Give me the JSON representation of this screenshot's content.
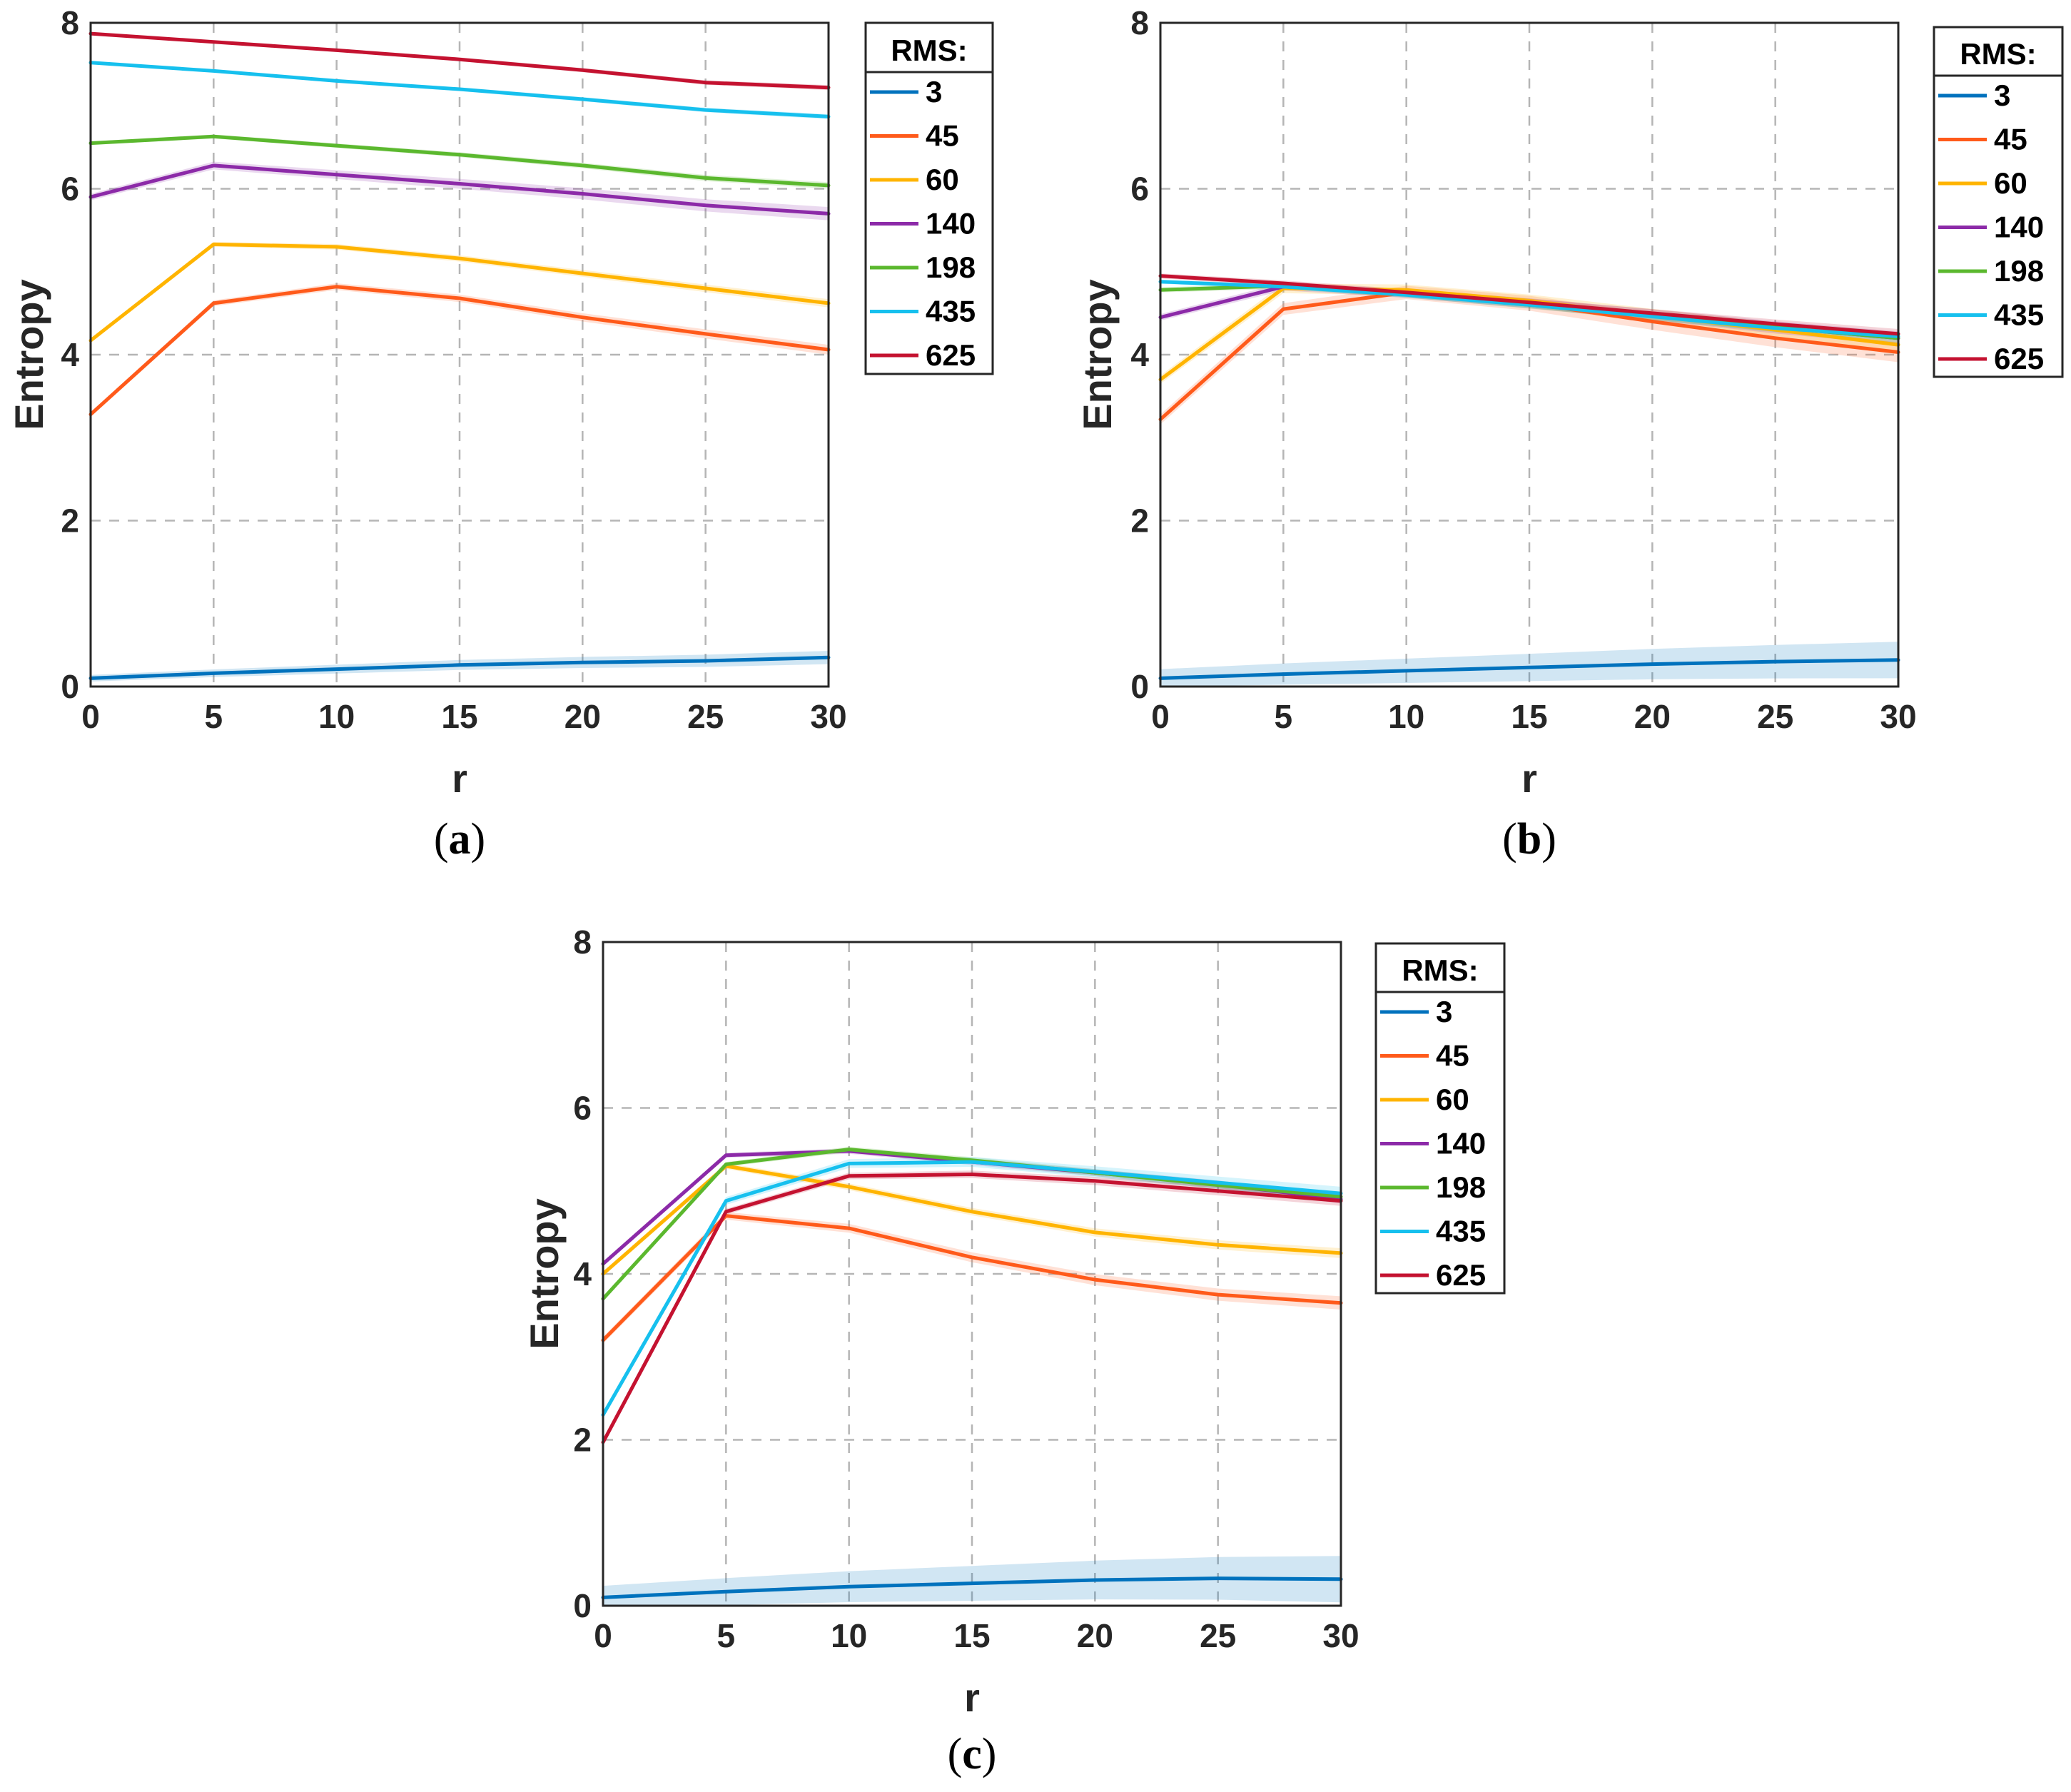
{
  "figure": {
    "colors": {
      "3": "#0072bd",
      "45": "#ff5a1a",
      "60": "#ffb400",
      "140": "#8c2aa8",
      "198": "#5bb82e",
      "435": "#16c0ee",
      "625": "#c41230"
    },
    "legend_title": "RMS:"
  },
  "chart_data": [
    {
      "type": "line",
      "caption_open": "(",
      "caption_letter": "a",
      "caption_close": ")",
      "xlabel": "r",
      "ylabel": "Entropy",
      "xlim": [
        0,
        30
      ],
      "ylim": [
        0,
        8
      ],
      "x_ticks": [
        "0",
        "5",
        "10",
        "15",
        "20",
        "25",
        "30"
      ],
      "y_ticks": [
        "0",
        "2",
        "4",
        "6",
        "8"
      ],
      "grid": true,
      "legend_position": "outside-right",
      "x": [
        0,
        5,
        10,
        15,
        20,
        25,
        30
      ],
      "series": [
        {
          "name": "3",
          "values": [
            0.1,
            0.16,
            0.21,
            0.26,
            0.29,
            0.31,
            0.35
          ],
          "band": 0.08
        },
        {
          "name": "45",
          "values": [
            3.28,
            4.62,
            4.82,
            4.68,
            4.45,
            4.25,
            4.06
          ],
          "band": 0.06
        },
        {
          "name": "60",
          "values": [
            4.17,
            5.33,
            5.3,
            5.16,
            4.98,
            4.8,
            4.62
          ],
          "band": 0.05
        },
        {
          "name": "140",
          "values": [
            5.9,
            6.28,
            6.17,
            6.06,
            5.94,
            5.8,
            5.7
          ],
          "band": 0.08
        },
        {
          "name": "198",
          "values": [
            6.55,
            6.63,
            6.52,
            6.41,
            6.28,
            6.13,
            6.04
          ],
          "band": 0.04
        },
        {
          "name": "435",
          "values": [
            7.52,
            7.42,
            7.3,
            7.2,
            7.08,
            6.95,
            6.87
          ],
          "band": 0.03
        },
        {
          "name": "625",
          "values": [
            7.87,
            7.77,
            7.67,
            7.56,
            7.43,
            7.28,
            7.22
          ],
          "band": 0.03
        }
      ]
    },
    {
      "type": "line",
      "caption_open": "(",
      "caption_letter": "b",
      "caption_close": ")",
      "xlabel": "r",
      "ylabel": "Entropy",
      "xlim": [
        0,
        30
      ],
      "ylim": [
        0,
        8
      ],
      "x_ticks": [
        "0",
        "5",
        "10",
        "15",
        "20",
        "25",
        "30"
      ],
      "y_ticks": [
        "0",
        "2",
        "4",
        "6",
        "8"
      ],
      "grid": true,
      "legend_position": "outside-right",
      "x": [
        0,
        5,
        10,
        15,
        20,
        25,
        30
      ],
      "series": [
        {
          "name": "3",
          "values": [
            0.1,
            0.15,
            0.19,
            0.23,
            0.27,
            0.3,
            0.32
          ],
          "band": 0.22
        },
        {
          "name": "45",
          "values": [
            3.22,
            4.55,
            4.75,
            4.62,
            4.4,
            4.2,
            4.03
          ],
          "band": 0.12
        },
        {
          "name": "60",
          "values": [
            3.7,
            4.8,
            4.78,
            4.65,
            4.47,
            4.3,
            4.12
          ],
          "band": 0.1
        },
        {
          "name": "140",
          "values": [
            4.45,
            4.82,
            4.74,
            4.62,
            4.48,
            4.33,
            4.2
          ],
          "band": 0.08
        },
        {
          "name": "198",
          "values": [
            4.78,
            4.83,
            4.73,
            4.6,
            4.47,
            4.33,
            4.2
          ],
          "band": 0.06
        },
        {
          "name": "435",
          "values": [
            4.88,
            4.82,
            4.72,
            4.6,
            4.46,
            4.32,
            4.22
          ],
          "band": 0.05
        },
        {
          "name": "625",
          "values": [
            4.95,
            4.86,
            4.75,
            4.63,
            4.5,
            4.37,
            4.25
          ],
          "band": 0.06
        }
      ]
    },
    {
      "type": "line",
      "caption_open": "(",
      "caption_letter": "c",
      "caption_close": ")",
      "xlabel": "r",
      "ylabel": "Entropy",
      "xlim": [
        0,
        30
      ],
      "ylim": [
        0,
        8
      ],
      "x_ticks": [
        "0",
        "5",
        "10",
        "15",
        "20",
        "25",
        "30"
      ],
      "y_ticks": [
        "0",
        "2",
        "4",
        "6",
        "8"
      ],
      "grid": true,
      "legend_position": "outside-right",
      "x": [
        0,
        5,
        10,
        15,
        20,
        25,
        30
      ],
      "series": [
        {
          "name": "3",
          "values": [
            0.1,
            0.17,
            0.23,
            0.27,
            0.31,
            0.33,
            0.32
          ],
          "band": 0.28
        },
        {
          "name": "45",
          "values": [
            3.2,
            4.7,
            4.55,
            4.2,
            3.93,
            3.75,
            3.65
          ],
          "band": 0.08
        },
        {
          "name": "60",
          "values": [
            4.0,
            5.3,
            5.05,
            4.75,
            4.5,
            4.35,
            4.25
          ],
          "band": 0.06
        },
        {
          "name": "140",
          "values": [
            4.12,
            5.43,
            5.48,
            5.35,
            5.22,
            5.08,
            4.9
          ],
          "band": 0.05
        },
        {
          "name": "198",
          "values": [
            3.7,
            5.32,
            5.5,
            5.37,
            5.22,
            5.07,
            4.93
          ],
          "band": 0.05
        },
        {
          "name": "435",
          "values": [
            2.3,
            4.88,
            5.33,
            5.35,
            5.23,
            5.1,
            4.97
          ],
          "band": 0.08
        },
        {
          "name": "625",
          "values": [
            1.97,
            4.75,
            5.18,
            5.2,
            5.12,
            5.0,
            4.88
          ],
          "band": 0.06
        }
      ]
    }
  ]
}
